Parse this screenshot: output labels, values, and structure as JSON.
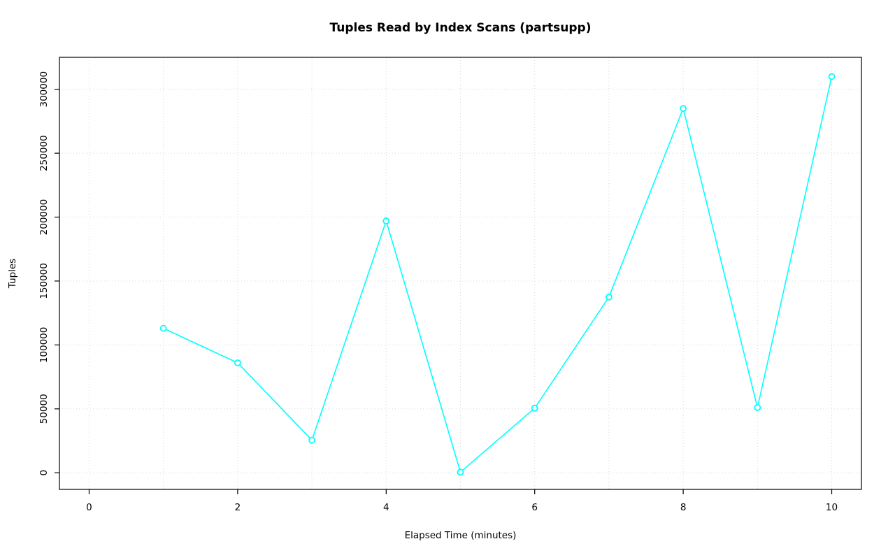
{
  "chart_data": {
    "type": "line",
    "title": "Tuples Read by Index Scans (partsupp)",
    "xlabel": "Elapsed Time (minutes)",
    "ylabel": "Tuples",
    "x": [
      1,
      2,
      3,
      4,
      5,
      6,
      7,
      8,
      9,
      10
    ],
    "y": [
      113000,
      86000,
      25500,
      197000,
      500,
      50500,
      137500,
      285000,
      51000,
      310000
    ],
    "xticks": [
      0,
      2,
      4,
      6,
      8,
      10
    ],
    "yticks": [
      0,
      50000,
      100000,
      150000,
      200000,
      250000,
      300000
    ],
    "x_gridlines": [
      0,
      1,
      2,
      3,
      4,
      5,
      6,
      7,
      8,
      9,
      10
    ],
    "xlim": [
      -0.4,
      10.4
    ],
    "ylim": [
      -13000,
      325000
    ],
    "grid": true,
    "legend": false,
    "line_color": "#00ffff",
    "marker": "open-circle",
    "marker_color": "#00ffff",
    "grid_color": "#d9d9d9",
    "axis_color": "#000000",
    "background_color": "#ffffff"
  }
}
